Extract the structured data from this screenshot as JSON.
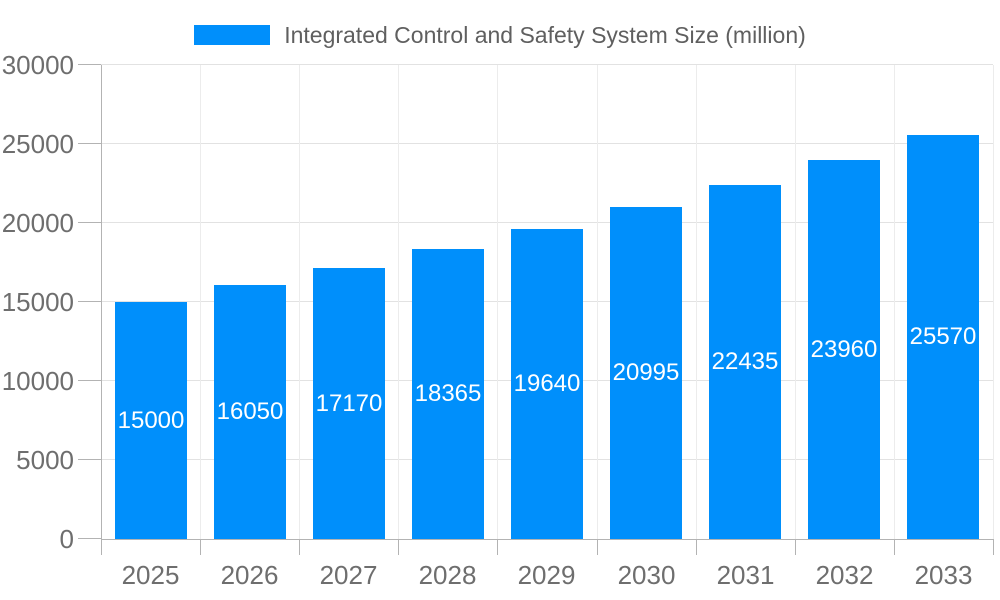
{
  "chart_data": {
    "type": "bar",
    "title": "",
    "legend": "Integrated Control and Safety System Size (million)",
    "legend_position": "top",
    "series": [
      {
        "name": "Integrated Control and Safety System Size (million)",
        "values": [
          15000,
          16050,
          17170,
          18365,
          19640,
          20995,
          22435,
          23960,
          25570
        ]
      }
    ],
    "categories": [
      "2025",
      "2026",
      "2027",
      "2028",
      "2029",
      "2030",
      "2031",
      "2032",
      "2033"
    ],
    "data_labels": [
      "15000",
      "16050",
      "17170",
      "18365",
      "19640",
      "20995",
      "22435",
      "23960",
      "25570"
    ],
    "xlabel": "",
    "ylabel": "",
    "ylim": [
      0,
      30000
    ],
    "yticks": [
      0,
      5000,
      10000,
      15000,
      20000,
      25000,
      30000
    ],
    "ytick_labels": [
      "0",
      "5000",
      "10000",
      "15000",
      "20000",
      "25000",
      "30000"
    ],
    "grid": true,
    "colors": {
      "bar": "#008FFB",
      "data_label": "#ffffff",
      "axis_label": "#6e6e6e",
      "legend_text": "#5f5f5f",
      "grid_horizontal": "#e2e2e2",
      "grid_vertical": "#ececec",
      "axis_line": "#b3b3b3",
      "tick": "#b3b3b3"
    }
  }
}
